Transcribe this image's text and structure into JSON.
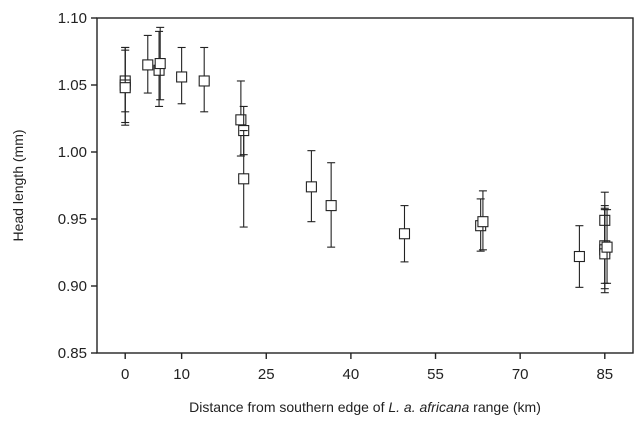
{
  "chart_data": {
    "type": "scatter",
    "title": "",
    "ylabel": "Head length  (mm)",
    "xlabel_parts": [
      {
        "text": "Distance from southern edge of ",
        "italic": false
      },
      {
        "text": "L. a. africana",
        "italic": true
      },
      {
        "text": " range (km)",
        "italic": false
      }
    ],
    "xlim": [
      -5,
      90
    ],
    "ylim": [
      0.85,
      1.1
    ],
    "xticks": [
      0,
      10,
      25,
      40,
      55,
      70,
      85
    ],
    "yticks": [
      0.85,
      0.9,
      0.95,
      1.0,
      1.05,
      1.1
    ],
    "ytick_labels": [
      "0.85",
      "0.90",
      "0.95",
      "1.00",
      "1.05",
      "1.10"
    ],
    "grid": false,
    "marker": "open-square",
    "colors": {
      "marker": "#222222",
      "axis": "#222222"
    },
    "points": [
      {
        "x": 0.0,
        "y": 1.053,
        "ylo": 1.03,
        "yhi": 1.078
      },
      {
        "x": 0.0,
        "y": 1.05,
        "ylo": 1.02,
        "yhi": 1.078
      },
      {
        "x": 0.0,
        "y": 1.048,
        "ylo": 1.022,
        "yhi": 1.076
      },
      {
        "x": 4.0,
        "y": 1.065,
        "ylo": 1.044,
        "yhi": 1.087
      },
      {
        "x": 6.0,
        "y": 1.061,
        "ylo": 1.034,
        "yhi": 1.09
      },
      {
        "x": 6.2,
        "y": 1.066,
        "ylo": 1.039,
        "yhi": 1.093
      },
      {
        "x": 10.0,
        "y": 1.056,
        "ylo": 1.036,
        "yhi": 1.078
      },
      {
        "x": 14.0,
        "y": 1.053,
        "ylo": 1.03,
        "yhi": 1.078
      },
      {
        "x": 20.5,
        "y": 1.024,
        "ylo": 0.997,
        "yhi": 1.053
      },
      {
        "x": 21.0,
        "y": 1.016,
        "ylo": 0.998,
        "yhi": 1.034
      },
      {
        "x": 21.0,
        "y": 0.98,
        "ylo": 0.944,
        "yhi": 1.016
      },
      {
        "x": 33.0,
        "y": 0.974,
        "ylo": 0.948,
        "yhi": 1.001
      },
      {
        "x": 36.5,
        "y": 0.96,
        "ylo": 0.929,
        "yhi": 0.992
      },
      {
        "x": 49.5,
        "y": 0.939,
        "ylo": 0.918,
        "yhi": 0.96
      },
      {
        "x": 63.0,
        "y": 0.945,
        "ylo": 0.926,
        "yhi": 0.965
      },
      {
        "x": 63.4,
        "y": 0.948,
        "ylo": 0.927,
        "yhi": 0.971
      },
      {
        "x": 80.5,
        "y": 0.922,
        "ylo": 0.899,
        "yhi": 0.945
      },
      {
        "x": 85.0,
        "y": 0.949,
        "ylo": 0.928,
        "yhi": 0.97
      },
      {
        "x": 85.0,
        "y": 0.93,
        "ylo": 0.902,
        "yhi": 0.958
      },
      {
        "x": 85.0,
        "y": 0.927,
        "ylo": 0.898,
        "yhi": 0.957
      },
      {
        "x": 85.0,
        "y": 0.924,
        "ylo": 0.895,
        "yhi": 0.96
      },
      {
        "x": 85.4,
        "y": 0.929,
        "ylo": 0.902,
        "yhi": 0.957
      }
    ]
  }
}
